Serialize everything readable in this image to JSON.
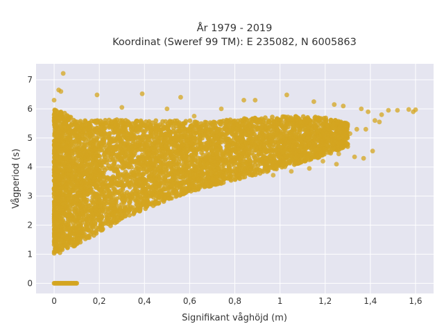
{
  "chart_data": {
    "type": "scatter",
    "title_lines": [
      "År 1979 - 2019",
      "Koordinat (Sweref 99 TM): E 235082, N 6005863"
    ],
    "xlabel": "Signifikant våghöjd (m)",
    "ylabel": "Vågperiod (s)",
    "xlim": [
      -0.08,
      1.68
    ],
    "ylim": [
      -0.35,
      7.55
    ],
    "x_ticks": [
      0,
      0.2,
      0.4,
      0.6,
      0.8,
      1,
      1.2,
      1.4,
      1.6
    ],
    "x_tick_labels": [
      "0",
      "0,2",
      "0,4",
      "0,6",
      "0,8",
      "1",
      "1,2",
      "1,4",
      "1,6"
    ],
    "y_ticks": [
      0,
      1,
      2,
      3,
      4,
      5,
      6,
      7
    ],
    "y_tick_labels": [
      "0",
      "1",
      "2",
      "3",
      "4",
      "5",
      "6",
      "7"
    ],
    "grid": true,
    "legend": "none",
    "point_color": "#d4a520",
    "background_color": "#e5e5f0",
    "envelope": [
      {
        "x": 0.0,
        "y_low": 1.0,
        "y_high": 6.0
      },
      {
        "x": 0.05,
        "y_low": 1.1,
        "y_high": 5.85
      },
      {
        "x": 0.1,
        "y_low": 1.3,
        "y_high": 5.6
      },
      {
        "x": 0.2,
        "y_low": 1.75,
        "y_high": 5.6
      },
      {
        "x": 0.3,
        "y_low": 2.2,
        "y_high": 5.65
      },
      {
        "x": 0.4,
        "y_low": 2.55,
        "y_high": 5.6
      },
      {
        "x": 0.5,
        "y_low": 2.85,
        "y_high": 5.6
      },
      {
        "x": 0.6,
        "y_low": 3.15,
        "y_high": 5.6
      },
      {
        "x": 0.7,
        "y_low": 3.35,
        "y_high": 5.55
      },
      {
        "x": 0.8,
        "y_low": 3.55,
        "y_high": 5.65
      },
      {
        "x": 0.9,
        "y_low": 3.75,
        "y_high": 5.7
      },
      {
        "x": 1.0,
        "y_low": 3.95,
        "y_high": 5.75
      },
      {
        "x": 1.1,
        "y_low": 4.15,
        "y_high": 5.75
      },
      {
        "x": 1.2,
        "y_low": 4.4,
        "y_high": 5.7
      },
      {
        "x": 1.3,
        "y_low": 4.7,
        "y_high": 5.5
      }
    ],
    "zero_period_points": {
      "x_min": 0.0,
      "x_max": 0.1,
      "y": 0
    },
    "outliers": [
      {
        "x": 0.04,
        "y": 7.22
      },
      {
        "x": 0.02,
        "y": 6.65
      },
      {
        "x": 0.03,
        "y": 6.6
      },
      {
        "x": 0.0,
        "y": 6.3
      },
      {
        "x": 0.19,
        "y": 6.48
      },
      {
        "x": 0.39,
        "y": 6.52
      },
      {
        "x": 0.56,
        "y": 6.4
      },
      {
        "x": 1.03,
        "y": 6.48
      },
      {
        "x": 0.89,
        "y": 6.3
      },
      {
        "x": 0.84,
        "y": 6.3
      },
      {
        "x": 1.15,
        "y": 6.25
      },
      {
        "x": 1.24,
        "y": 6.15
      },
      {
        "x": 1.28,
        "y": 6.1
      },
      {
        "x": 1.36,
        "y": 6.0
      },
      {
        "x": 1.39,
        "y": 5.9
      },
      {
        "x": 1.45,
        "y": 5.8
      },
      {
        "x": 1.48,
        "y": 5.95
      },
      {
        "x": 1.52,
        "y": 5.95
      },
      {
        "x": 1.57,
        "y": 5.98
      },
      {
        "x": 1.59,
        "y": 5.9
      },
      {
        "x": 1.6,
        "y": 5.97
      },
      {
        "x": 1.42,
        "y": 5.6
      },
      {
        "x": 1.41,
        "y": 4.55
      },
      {
        "x": 1.37,
        "y": 4.3
      },
      {
        "x": 1.33,
        "y": 4.35
      },
      {
        "x": 1.26,
        "y": 4.45
      },
      {
        "x": 1.25,
        "y": 4.1
      },
      {
        "x": 1.19,
        "y": 4.2
      },
      {
        "x": 1.13,
        "y": 3.95
      },
      {
        "x": 1.05,
        "y": 3.85
      },
      {
        "x": 0.97,
        "y": 3.72
      },
      {
        "x": 0.62,
        "y": 5.75
      },
      {
        "x": 0.74,
        "y": 6.0
      },
      {
        "x": 0.3,
        "y": 6.05
      },
      {
        "x": 0.5,
        "y": 6.0
      },
      {
        "x": 1.34,
        "y": 5.3
      },
      {
        "x": 1.31,
        "y": 5.15
      },
      {
        "x": 1.38,
        "y": 5.3
      },
      {
        "x": 1.44,
        "y": 5.55
      }
    ]
  }
}
